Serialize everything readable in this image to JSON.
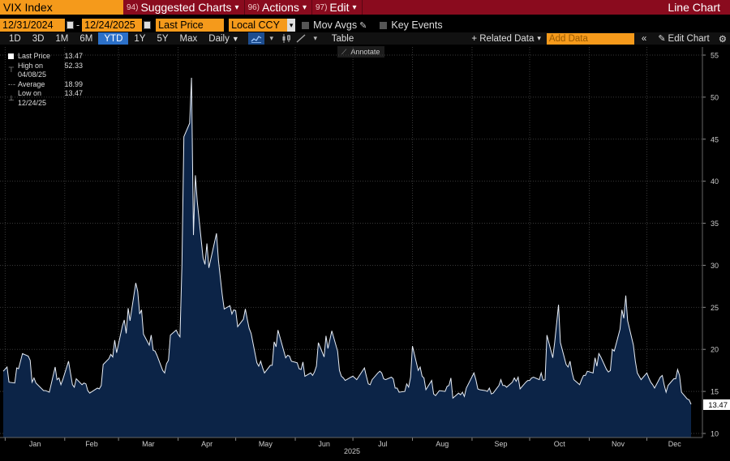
{
  "topbar": {
    "ticker": "VIX Index",
    "menus": [
      {
        "num": "94)",
        "label": "Suggested Charts",
        "caret": "▾"
      },
      {
        "num": "96)",
        "label": "Actions",
        "caret": "▾"
      },
      {
        "num": "97)",
        "label": "Edit",
        "caret": "▾"
      }
    ],
    "right_title": "Line Chart"
  },
  "controls": {
    "start_date": "12/31/2024",
    "end_date": "12/24/2025",
    "field": "Last Price",
    "currency": "Local CCY",
    "mov_avgs": "Mov Avgs",
    "key_events": "Key Events"
  },
  "periods": [
    "1D",
    "3D",
    "1M",
    "6M",
    "YTD",
    "1Y",
    "5Y",
    "Max"
  ],
  "active_period": "YTD",
  "frequency": "Daily",
  "table_label": "Table",
  "related_data": "+ Related Data",
  "add_data_placeholder": "Add Data",
  "edit_chart": "Edit Chart",
  "tooltip": "Annotate",
  "legend": [
    {
      "label": "Last Price",
      "value": "13.47"
    },
    {
      "label": "High on 04/08/25",
      "value": "52.33"
    },
    {
      "label": "Average",
      "value": "18.99"
    },
    {
      "label": "Low on 12/24/25",
      "value": "13.47"
    }
  ],
  "last_value_tag": "13.47",
  "colors": {
    "accent": "#f59a1b",
    "topbar": "#8a0b1e",
    "area": "#0c2447",
    "line": "#e8eef7",
    "active": "#2c70c8"
  },
  "chart_data": {
    "type": "area",
    "title": "",
    "xlabel": "2025",
    "ylabel": "",
    "ylim": [
      10,
      55
    ],
    "yticks": [
      10,
      15,
      20,
      25,
      30,
      35,
      40,
      45,
      50,
      55
    ],
    "x_ticks": [
      "Jan",
      "Feb",
      "Mar",
      "Apr",
      "May",
      "Jun",
      "Jul",
      "Aug",
      "Sep",
      "Oct",
      "Nov",
      "Dec"
    ],
    "x_range": [
      "2024-12-31",
      "2025-12-24"
    ],
    "series": [
      {
        "points": [
          [
            "2024-12-31",
            17.4
          ],
          [
            "2025-01-02",
            17.9
          ],
          [
            "2025-01-03",
            16.1
          ],
          [
            "2025-01-06",
            16.0
          ],
          [
            "2025-01-07",
            17.8
          ],
          [
            "2025-01-08",
            17.7
          ],
          [
            "2025-01-10",
            19.5
          ],
          [
            "2025-01-13",
            19.2
          ],
          [
            "2025-01-14",
            18.7
          ],
          [
            "2025-01-15",
            16.1
          ],
          [
            "2025-01-16",
            16.6
          ],
          [
            "2025-01-17",
            16.0
          ],
          [
            "2025-01-21",
            15.1
          ],
          [
            "2025-01-22",
            15.1
          ],
          [
            "2025-01-23",
            15.0
          ],
          [
            "2025-01-24",
            14.9
          ],
          [
            "2025-01-27",
            17.9
          ],
          [
            "2025-01-28",
            16.4
          ],
          [
            "2025-01-29",
            16.6
          ],
          [
            "2025-01-30",
            15.8
          ],
          [
            "2025-01-31",
            16.4
          ],
          [
            "2025-02-03",
            18.6
          ],
          [
            "2025-02-04",
            17.2
          ],
          [
            "2025-02-05",
            15.8
          ],
          [
            "2025-02-06",
            15.5
          ],
          [
            "2025-02-07",
            16.5
          ],
          [
            "2025-02-10",
            15.8
          ],
          [
            "2025-02-11",
            16.0
          ],
          [
            "2025-02-12",
            15.9
          ],
          [
            "2025-02-13",
            15.1
          ],
          [
            "2025-02-14",
            14.8
          ],
          [
            "2025-02-18",
            15.4
          ],
          [
            "2025-02-19",
            15.3
          ],
          [
            "2025-02-20",
            15.7
          ],
          [
            "2025-02-21",
            18.2
          ],
          [
            "2025-02-24",
            18.9
          ],
          [
            "2025-02-25",
            19.4
          ],
          [
            "2025-02-26",
            19.1
          ],
          [
            "2025-02-27",
            21.1
          ],
          [
            "2025-02-28",
            19.6
          ],
          [
            "2025-03-03",
            22.8
          ],
          [
            "2025-03-04",
            23.5
          ],
          [
            "2025-03-05",
            21.9
          ],
          [
            "2025-03-06",
            24.9
          ],
          [
            "2025-03-07",
            23.4
          ],
          [
            "2025-03-10",
            27.9
          ],
          [
            "2025-03-11",
            26.9
          ],
          [
            "2025-03-12",
            24.2
          ],
          [
            "2025-03-13",
            24.7
          ],
          [
            "2025-03-14",
            21.8
          ],
          [
            "2025-03-17",
            20.5
          ],
          [
            "2025-03-18",
            21.7
          ],
          [
            "2025-03-19",
            19.9
          ],
          [
            "2025-03-20",
            19.8
          ],
          [
            "2025-03-21",
            19.3
          ],
          [
            "2025-03-24",
            17.5
          ],
          [
            "2025-03-25",
            17.2
          ],
          [
            "2025-03-26",
            18.3
          ],
          [
            "2025-03-27",
            18.7
          ],
          [
            "2025-03-28",
            21.7
          ],
          [
            "2025-03-31",
            22.3
          ],
          [
            "2025-04-01",
            21.8
          ],
          [
            "2025-04-02",
            21.5
          ],
          [
            "2025-04-03",
            30.0
          ],
          [
            "2025-04-04",
            45.3
          ],
          [
            "2025-04-07",
            46.9
          ],
          [
            "2025-04-08",
            52.3
          ],
          [
            "2025-04-09",
            33.6
          ],
          [
            "2025-04-10",
            40.7
          ],
          [
            "2025-04-11",
            37.6
          ],
          [
            "2025-04-14",
            30.9
          ],
          [
            "2025-04-15",
            30.1
          ],
          [
            "2025-04-16",
            32.6
          ],
          [
            "2025-04-17",
            29.7
          ],
          [
            "2025-04-21",
            33.8
          ],
          [
            "2025-04-22",
            30.6
          ],
          [
            "2025-04-23",
            28.5
          ],
          [
            "2025-04-24",
            26.5
          ],
          [
            "2025-04-25",
            24.8
          ],
          [
            "2025-04-28",
            25.2
          ],
          [
            "2025-04-29",
            24.2
          ],
          [
            "2025-04-30",
            24.7
          ],
          [
            "2025-05-01",
            24.6
          ],
          [
            "2025-05-02",
            22.7
          ],
          [
            "2025-05-05",
            23.6
          ],
          [
            "2025-05-06",
            24.8
          ],
          [
            "2025-05-07",
            23.6
          ],
          [
            "2025-05-08",
            22.5
          ],
          [
            "2025-05-09",
            21.9
          ],
          [
            "2025-05-12",
            18.4
          ],
          [
            "2025-05-13",
            18.0
          ],
          [
            "2025-05-14",
            18.6
          ],
          [
            "2025-05-15",
            17.8
          ],
          [
            "2025-05-16",
            17.2
          ],
          [
            "2025-05-19",
            18.1
          ],
          [
            "2025-05-20",
            18.1
          ],
          [
            "2025-05-21",
            20.9
          ],
          [
            "2025-05-22",
            20.3
          ],
          [
            "2025-05-23",
            22.3
          ],
          [
            "2025-05-27",
            19.0
          ],
          [
            "2025-05-28",
            19.3
          ],
          [
            "2025-05-29",
            19.2
          ],
          [
            "2025-05-30",
            18.6
          ],
          [
            "2025-06-02",
            18.4
          ],
          [
            "2025-06-03",
            17.7
          ],
          [
            "2025-06-04",
            17.6
          ],
          [
            "2025-06-05",
            18.5
          ],
          [
            "2025-06-06",
            16.8
          ],
          [
            "2025-06-09",
            17.2
          ],
          [
            "2025-06-10",
            16.9
          ],
          [
            "2025-06-11",
            17.3
          ],
          [
            "2025-06-12",
            18.0
          ],
          [
            "2025-06-13",
            20.8
          ],
          [
            "2025-06-16",
            19.1
          ],
          [
            "2025-06-17",
            21.6
          ],
          [
            "2025-06-18",
            20.1
          ],
          [
            "2025-06-20",
            22.2
          ],
          [
            "2025-06-23",
            19.8
          ],
          [
            "2025-06-24",
            17.5
          ],
          [
            "2025-06-25",
            16.8
          ],
          [
            "2025-06-26",
            16.6
          ],
          [
            "2025-06-27",
            16.3
          ],
          [
            "2025-06-30",
            16.7
          ],
          [
            "2025-07-01",
            16.8
          ],
          [
            "2025-07-02",
            16.6
          ],
          [
            "2025-07-03",
            16.4
          ],
          [
            "2025-07-07",
            17.8
          ],
          [
            "2025-07-08",
            16.8
          ],
          [
            "2025-07-09",
            15.9
          ],
          [
            "2025-07-10",
            15.8
          ],
          [
            "2025-07-11",
            16.4
          ],
          [
            "2025-07-14",
            17.2
          ],
          [
            "2025-07-15",
            17.4
          ],
          [
            "2025-07-16",
            17.2
          ],
          [
            "2025-07-17",
            16.5
          ],
          [
            "2025-07-18",
            16.4
          ],
          [
            "2025-07-21",
            16.7
          ],
          [
            "2025-07-22",
            16.5
          ],
          [
            "2025-07-23",
            15.4
          ],
          [
            "2025-07-24",
            15.4
          ],
          [
            "2025-07-25",
            14.9
          ],
          [
            "2025-07-28",
            15.0
          ],
          [
            "2025-07-29",
            15.9
          ],
          [
            "2025-07-30",
            15.5
          ],
          [
            "2025-07-31",
            16.7
          ],
          [
            "2025-08-01",
            20.4
          ],
          [
            "2025-08-04",
            17.5
          ],
          [
            "2025-08-05",
            17.9
          ],
          [
            "2025-08-06",
            16.8
          ],
          [
            "2025-08-07",
            16.6
          ],
          [
            "2025-08-08",
            15.2
          ],
          [
            "2025-08-11",
            16.3
          ],
          [
            "2025-08-12",
            14.7
          ],
          [
            "2025-08-13",
            14.5
          ],
          [
            "2025-08-14",
            14.8
          ],
          [
            "2025-08-15",
            15.1
          ],
          [
            "2025-08-18",
            15.0
          ],
          [
            "2025-08-19",
            15.6
          ],
          [
            "2025-08-20",
            15.7
          ],
          [
            "2025-08-21",
            16.6
          ],
          [
            "2025-08-22",
            14.2
          ],
          [
            "2025-08-25",
            14.8
          ],
          [
            "2025-08-26",
            14.6
          ],
          [
            "2025-08-27",
            14.9
          ],
          [
            "2025-08-28",
            14.4
          ],
          [
            "2025-08-29",
            15.4
          ],
          [
            "2025-09-02",
            17.2
          ],
          [
            "2025-09-03",
            16.4
          ],
          [
            "2025-09-04",
            15.3
          ],
          [
            "2025-09-05",
            15.2
          ],
          [
            "2025-09-08",
            15.1
          ],
          [
            "2025-09-09",
            15.0
          ],
          [
            "2025-09-10",
            15.4
          ],
          [
            "2025-09-11",
            14.7
          ],
          [
            "2025-09-12",
            14.8
          ],
          [
            "2025-09-15",
            15.7
          ],
          [
            "2025-09-16",
            16.4
          ],
          [
            "2025-09-17",
            15.7
          ],
          [
            "2025-09-18",
            15.7
          ],
          [
            "2025-09-19",
            15.5
          ],
          [
            "2025-09-22",
            16.1
          ],
          [
            "2025-09-23",
            16.6
          ],
          [
            "2025-09-24",
            16.2
          ],
          [
            "2025-09-25",
            16.7
          ],
          [
            "2025-09-26",
            15.3
          ],
          [
            "2025-09-29",
            16.1
          ],
          [
            "2025-09-30",
            16.3
          ],
          [
            "2025-10-01",
            16.3
          ],
          [
            "2025-10-02",
            16.6
          ],
          [
            "2025-10-03",
            16.7
          ],
          [
            "2025-10-06",
            16.4
          ],
          [
            "2025-10-07",
            17.2
          ],
          [
            "2025-10-08",
            16.3
          ],
          [
            "2025-10-09",
            16.4
          ],
          [
            "2025-10-10",
            21.7
          ],
          [
            "2025-10-13",
            19.0
          ],
          [
            "2025-10-14",
            20.8
          ],
          [
            "2025-10-16",
            25.3
          ],
          [
            "2025-10-17",
            20.8
          ],
          [
            "2025-10-20",
            18.2
          ],
          [
            "2025-10-21",
            17.9
          ],
          [
            "2025-10-22",
            18.6
          ],
          [
            "2025-10-23",
            17.3
          ],
          [
            "2025-10-24",
            16.4
          ],
          [
            "2025-10-27",
            15.8
          ],
          [
            "2025-10-28",
            16.4
          ],
          [
            "2025-10-29",
            16.9
          ],
          [
            "2025-10-30",
            16.9
          ],
          [
            "2025-10-31",
            17.4
          ],
          [
            "2025-11-03",
            17.2
          ],
          [
            "2025-11-04",
            19.0
          ],
          [
            "2025-11-05",
            18.0
          ],
          [
            "2025-11-06",
            19.5
          ],
          [
            "2025-11-07",
            19.1
          ],
          [
            "2025-11-10",
            17.6
          ],
          [
            "2025-11-11",
            17.3
          ],
          [
            "2025-11-12",
            17.5
          ],
          [
            "2025-11-13",
            20.0
          ],
          [
            "2025-11-14",
            19.8
          ],
          [
            "2025-11-17",
            22.4
          ],
          [
            "2025-11-18",
            24.7
          ],
          [
            "2025-11-19",
            23.7
          ],
          [
            "2025-11-20",
            26.4
          ],
          [
            "2025-11-21",
            23.4
          ],
          [
            "2025-11-24",
            20.5
          ],
          [
            "2025-11-25",
            18.6
          ],
          [
            "2025-11-26",
            17.2
          ],
          [
            "2025-11-28",
            16.4
          ],
          [
            "2025-12-01",
            17.2
          ],
          [
            "2025-12-02",
            16.6
          ],
          [
            "2025-12-03",
            16.1
          ],
          [
            "2025-12-04",
            15.8
          ],
          [
            "2025-12-05",
            15.4
          ],
          [
            "2025-12-08",
            16.7
          ],
          [
            "2025-12-09",
            16.9
          ],
          [
            "2025-12-10",
            15.8
          ],
          [
            "2025-12-11",
            14.9
          ],
          [
            "2025-12-12",
            15.7
          ],
          [
            "2025-12-15",
            16.5
          ],
          [
            "2025-12-16",
            16.5
          ],
          [
            "2025-12-17",
            17.6
          ],
          [
            "2025-12-18",
            16.9
          ],
          [
            "2025-12-19",
            14.9
          ],
          [
            "2025-12-22",
            14.1
          ],
          [
            "2025-12-23",
            14.0
          ],
          [
            "2025-12-24",
            13.47
          ]
        ]
      }
    ]
  }
}
